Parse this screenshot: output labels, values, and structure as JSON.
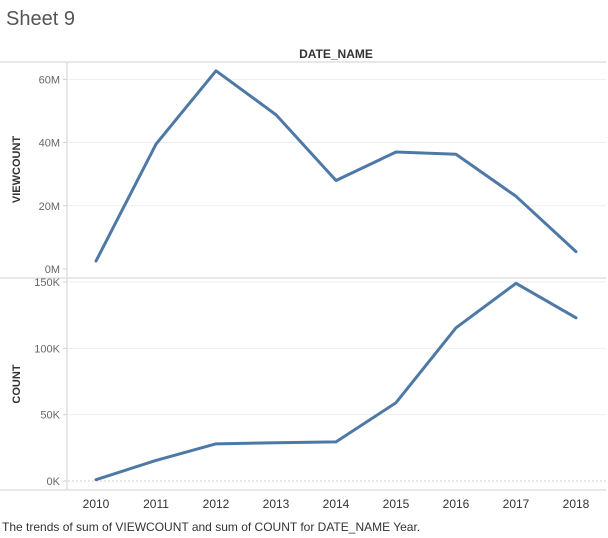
{
  "sheet": {
    "title": "Sheet 9",
    "caption": "The trends of sum of VIEWCOUNT and sum of COUNT for DATE_NAME Year."
  },
  "colors": {
    "line": "#4e79a7",
    "gridline": "#eeeeee",
    "axis": "#d0d0d0",
    "text": "#666666"
  },
  "chart_data": {
    "type": "line",
    "title": "DATE_NAME",
    "xlabel": "",
    "categories": [
      "2010",
      "2011",
      "2012",
      "2013",
      "2014",
      "2015",
      "2016",
      "2017",
      "2018"
    ],
    "grid": true,
    "panes": [
      {
        "name": "VIEWCOUNT",
        "ylabel": "VIEWCOUNT",
        "ylim": [
          0,
          62000000
        ],
        "yticks": [
          0,
          20000000,
          40000000,
          60000000
        ],
        "ytick_labels": [
          "0M",
          "20M",
          "40M",
          "60M"
        ],
        "values": [
          2500000,
          39500000,
          62700000,
          48800000,
          28000000,
          37000000,
          36300000,
          23000000,
          5500000
        ]
      },
      {
        "name": "COUNT",
        "ylabel": "COUNT",
        "ylim": [
          0,
          150000
        ],
        "yticks": [
          0,
          50000,
          100000,
          150000
        ],
        "ytick_labels": [
          "0K",
          "50K",
          "100K",
          "150K"
        ],
        "values": [
          1000,
          15500,
          28000,
          28800,
          29500,
          59000,
          115500,
          149000,
          123000
        ]
      }
    ]
  }
}
